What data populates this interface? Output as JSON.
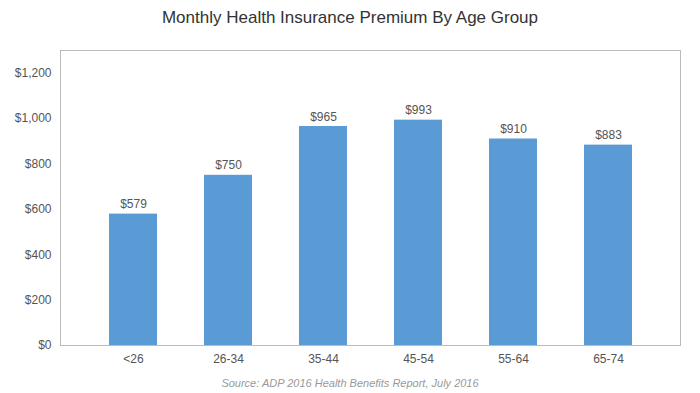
{
  "chart_data": {
    "type": "bar",
    "title": "Monthly Health Insurance Premium By Age Group",
    "caption": "Source: ADP 2016 Health Benefits Report, July 2016",
    "categories": [
      "<26",
      "26-34",
      "35-44",
      "45-54",
      "55-64",
      "65-74"
    ],
    "values": [
      579,
      750,
      965,
      993,
      910,
      883
    ],
    "value_labels": [
      "$579",
      "$750",
      "$965",
      "$993",
      "$910",
      "$883"
    ],
    "data_labels": true,
    "color": "#5B9BD5",
    "ylim": [
      0,
      1300
    ],
    "yticks": [
      {
        "value": 0,
        "label": "$0"
      },
      {
        "value": 200,
        "label": "$200"
      },
      {
        "value": 400,
        "label": "$400"
      },
      {
        "value": 600,
        "label": "$600"
      },
      {
        "value": 800,
        "label": "$800"
      },
      {
        "value": 1000,
        "label": "$1,000"
      },
      {
        "value": 1200,
        "label": "$1,200"
      }
    ],
    "grid": false
  }
}
